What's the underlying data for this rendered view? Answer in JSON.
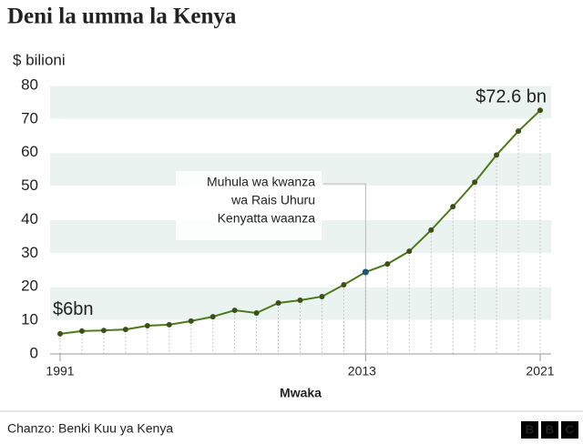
{
  "chart_data": {
    "type": "line",
    "title": "Deni la umma la Kenya",
    "y_label": "$ bilioni",
    "x_label": "Mwaka",
    "categories": [
      "1991",
      null,
      null,
      null,
      null,
      null,
      null,
      null,
      null,
      null,
      null,
      null,
      null,
      null,
      "2013",
      null,
      null,
      null,
      null,
      null,
      null,
      null,
      "2021"
    ],
    "series": [
      {
        "name": "Deni la umma",
        "color": "#4b7a1a",
        "values": [
          6,
          6.8,
          7.0,
          7.3,
          8.4,
          8.7,
          9.8,
          11.1,
          13.0,
          12.2,
          15.2,
          16.0,
          17.1,
          20.6,
          24.4,
          26.8,
          30.6,
          36.9,
          43.9,
          51.2,
          59.3,
          66.4,
          72.6
        ],
        "value_labels": [
          "$6bn",
          null,
          null,
          null,
          null,
          null,
          null,
          null,
          null,
          null,
          null,
          null,
          null,
          null,
          null,
          null,
          null,
          null,
          null,
          null,
          null,
          null,
          "$72.6 bn"
        ]
      }
    ],
    "ylim": [
      0,
      80
    ],
    "yticks": [
      0,
      10,
      20,
      30,
      40,
      50,
      60,
      70,
      80
    ],
    "annotation": {
      "lines": [
        "Muhula wa kwanza",
        "wa Rais Uhuru",
        "Kenyatta waanza"
      ],
      "at": 14,
      "color": "#1d5672"
    },
    "source": "Chanzo: Benki Kuu ya Kenya",
    "logo": [
      "B",
      "B",
      "C"
    ]
  }
}
